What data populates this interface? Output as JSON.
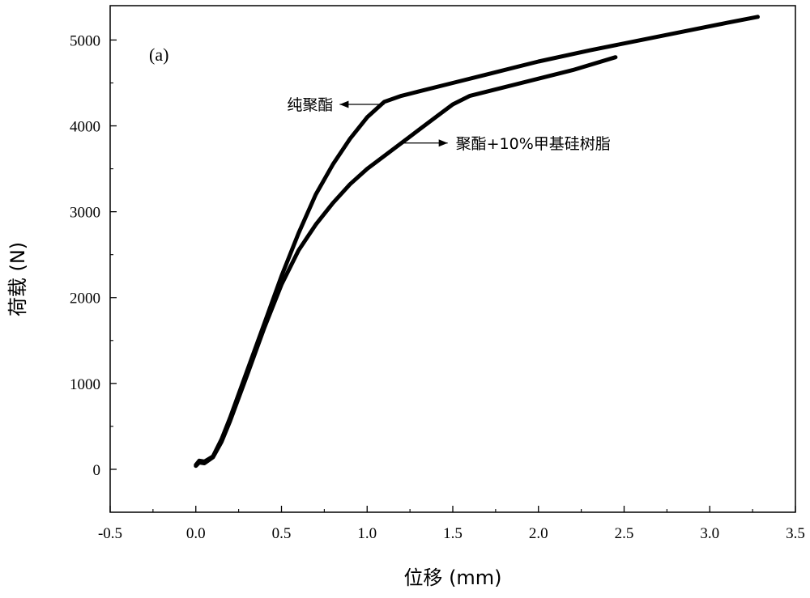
{
  "chart_data": {
    "type": "line",
    "title": "",
    "panel_label": "(a)",
    "xlabel": "位移 (mm)",
    "ylabel": "荷载 (N)",
    "xlim": [
      -0.5,
      3.5
    ],
    "ylim": [
      -500,
      5400
    ],
    "x_ticks": [
      -0.5,
      0.0,
      0.5,
      1.0,
      1.5,
      2.0,
      2.5,
      3.0,
      3.5
    ],
    "x_tick_labels": [
      "-0.5",
      "0.0",
      "0.5",
      "1.0",
      "1.5",
      "2.0",
      "2.5",
      "3.0",
      "3.5"
    ],
    "y_ticks": [
      0,
      1000,
      2000,
      3000,
      4000,
      5000
    ],
    "y_tick_labels": [
      "0",
      "1000",
      "2000",
      "3000",
      "4000",
      "5000"
    ],
    "grid": false,
    "series": [
      {
        "name": "纯聚酯",
        "color": "#000000",
        "x": [
          0.0,
          0.02,
          0.05,
          0.1,
          0.15,
          0.2,
          0.3,
          0.4,
          0.5,
          0.6,
          0.7,
          0.8,
          0.9,
          1.0,
          1.1,
          1.2,
          1.3,
          1.5,
          1.7,
          2.0,
          2.3,
          2.6,
          2.9,
          3.1,
          3.28
        ],
        "y": [
          50,
          100,
          90,
          150,
          350,
          600,
          1150,
          1700,
          2250,
          2750,
          3200,
          3550,
          3850,
          4100,
          4280,
          4350,
          4400,
          4500,
          4600,
          4750,
          4880,
          5000,
          5120,
          5200,
          5270
        ]
      },
      {
        "name": "聚酯+10%甲基硅树脂",
        "color": "#000000",
        "x": [
          0.0,
          0.02,
          0.05,
          0.1,
          0.15,
          0.2,
          0.3,
          0.4,
          0.5,
          0.6,
          0.7,
          0.8,
          0.9,
          1.0,
          1.1,
          1.2,
          1.3,
          1.4,
          1.5,
          1.6,
          1.8,
          2.0,
          2.2,
          2.45
        ],
        "y": [
          40,
          80,
          70,
          140,
          320,
          560,
          1100,
          1650,
          2150,
          2550,
          2850,
          3100,
          3320,
          3500,
          3650,
          3800,
          3950,
          4100,
          4250,
          4350,
          4450,
          4550,
          4650,
          4800
        ]
      }
    ],
    "annotations": [
      {
        "text": "纯聚酯",
        "series": "纯聚酯",
        "arrow": "left",
        "arrow_tail": [
          1.1,
          4250
        ],
        "arrow_head": [
          0.84,
          4250
        ]
      },
      {
        "text": "聚酯+10%甲基硅树脂",
        "series": "聚酯+10%甲基硅树脂",
        "arrow": "right",
        "arrow_tail": [
          1.21,
          3800
        ],
        "arrow_head": [
          1.47,
          3800
        ]
      }
    ]
  }
}
